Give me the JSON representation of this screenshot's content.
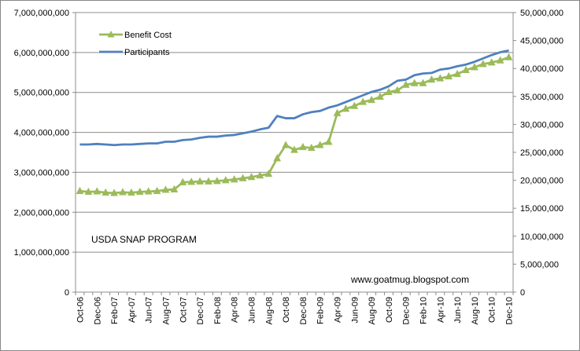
{
  "chart_data": {
    "type": "line",
    "x": [
      "Oct-06",
      "Nov-06",
      "Dec-06",
      "Jan-07",
      "Feb-07",
      "Mar-07",
      "Apr-07",
      "May-07",
      "Jun-07",
      "Jul-07",
      "Aug-07",
      "Sep-07",
      "Oct-07",
      "Nov-07",
      "Dec-07",
      "Jan-08",
      "Feb-08",
      "Mar-08",
      "Apr-08",
      "May-08",
      "Jun-08",
      "Jul-08",
      "Aug-08",
      "Sep-08",
      "Oct-08",
      "Nov-08",
      "Dec-08",
      "Jan-09",
      "Feb-09",
      "Mar-09",
      "Apr-09",
      "May-09",
      "Jun-09",
      "Jul-09",
      "Aug-09",
      "Sep-09",
      "Oct-09",
      "Nov-09",
      "Dec-09",
      "Jan-10",
      "Feb-10",
      "Mar-10",
      "Apr-10",
      "May-10",
      "Jun-10",
      "Jul-10",
      "Aug-10",
      "Sep-10",
      "Oct-10",
      "Nov-10",
      "Dec-10"
    ],
    "x_tick_labels": [
      "Oct-06",
      "Dec-06",
      "Feb-07",
      "Apr-07",
      "Jun-07",
      "Aug-07",
      "Oct-07",
      "Dec-07",
      "Feb-08",
      "Apr-08",
      "Jun-08",
      "Aug-08",
      "Oct-08",
      "Dec-08",
      "Feb-09",
      "Apr-09",
      "Jun-09",
      "Aug-09",
      "Oct-09",
      "Dec-09",
      "Feb-10",
      "Apr-10",
      "Jun-10",
      "Aug-10",
      "Oct-10",
      "Dec-10"
    ],
    "series": [
      {
        "name": "Benefit Cost",
        "axis": "left",
        "color": "#9BBB59",
        "marker": "triangle",
        "values": [
          2530000000,
          2510000000,
          2520000000,
          2490000000,
          2480000000,
          2500000000,
          2490000000,
          2510000000,
          2520000000,
          2530000000,
          2560000000,
          2570000000,
          2750000000,
          2760000000,
          2770000000,
          2770000000,
          2780000000,
          2800000000,
          2820000000,
          2850000000,
          2880000000,
          2920000000,
          2960000000,
          3350000000,
          3680000000,
          3560000000,
          3630000000,
          3610000000,
          3680000000,
          3760000000,
          4480000000,
          4590000000,
          4660000000,
          4760000000,
          4810000000,
          4890000000,
          5010000000,
          5050000000,
          5190000000,
          5230000000,
          5230000000,
          5320000000,
          5350000000,
          5400000000,
          5460000000,
          5560000000,
          5630000000,
          5710000000,
          5750000000,
          5800000000,
          5880000000
        ]
      },
      {
        "name": "Participants",
        "axis": "right",
        "color": "#4F81BD",
        "marker": "none",
        "values": [
          26400000,
          26400000,
          26500000,
          26400000,
          26300000,
          26400000,
          26400000,
          26500000,
          26600000,
          26600000,
          26900000,
          26900000,
          27200000,
          27300000,
          27600000,
          27800000,
          27800000,
          28000000,
          28100000,
          28400000,
          28700000,
          29100000,
          29400000,
          31500000,
          31100000,
          31100000,
          31800000,
          32200000,
          32400000,
          33000000,
          33400000,
          34000000,
          34600000,
          35200000,
          35800000,
          36200000,
          36800000,
          37800000,
          38000000,
          38800000,
          39100000,
          39200000,
          39800000,
          40000000,
          40400000,
          40700000,
          41200000,
          41800000,
          42400000,
          42900000,
          43200000
        ]
      }
    ],
    "y_left": {
      "lim": [
        0,
        7000000000
      ],
      "tick_labels": [
        "0",
        "1,000,000,000",
        "2,000,000,000",
        "3,000,000,000",
        "4,000,000,000",
        "5,000,000,000",
        "6,000,000,000",
        "7,000,000,000"
      ]
    },
    "y_right": {
      "lim": [
        0,
        50000000
      ],
      "tick_labels": [
        "0",
        "5,000,000",
        "10,000,000",
        "15,000,000",
        "20,000,000",
        "25,000,000",
        "30,000,000",
        "35,000,000",
        "40,000,000",
        "45,000,000",
        "50,000,000"
      ]
    },
    "grid": "horizontal",
    "legend_placement": "top-left",
    "annotations": [
      "USDA SNAP PROGRAM",
      "www.goatmug.blogspot.com"
    ]
  }
}
